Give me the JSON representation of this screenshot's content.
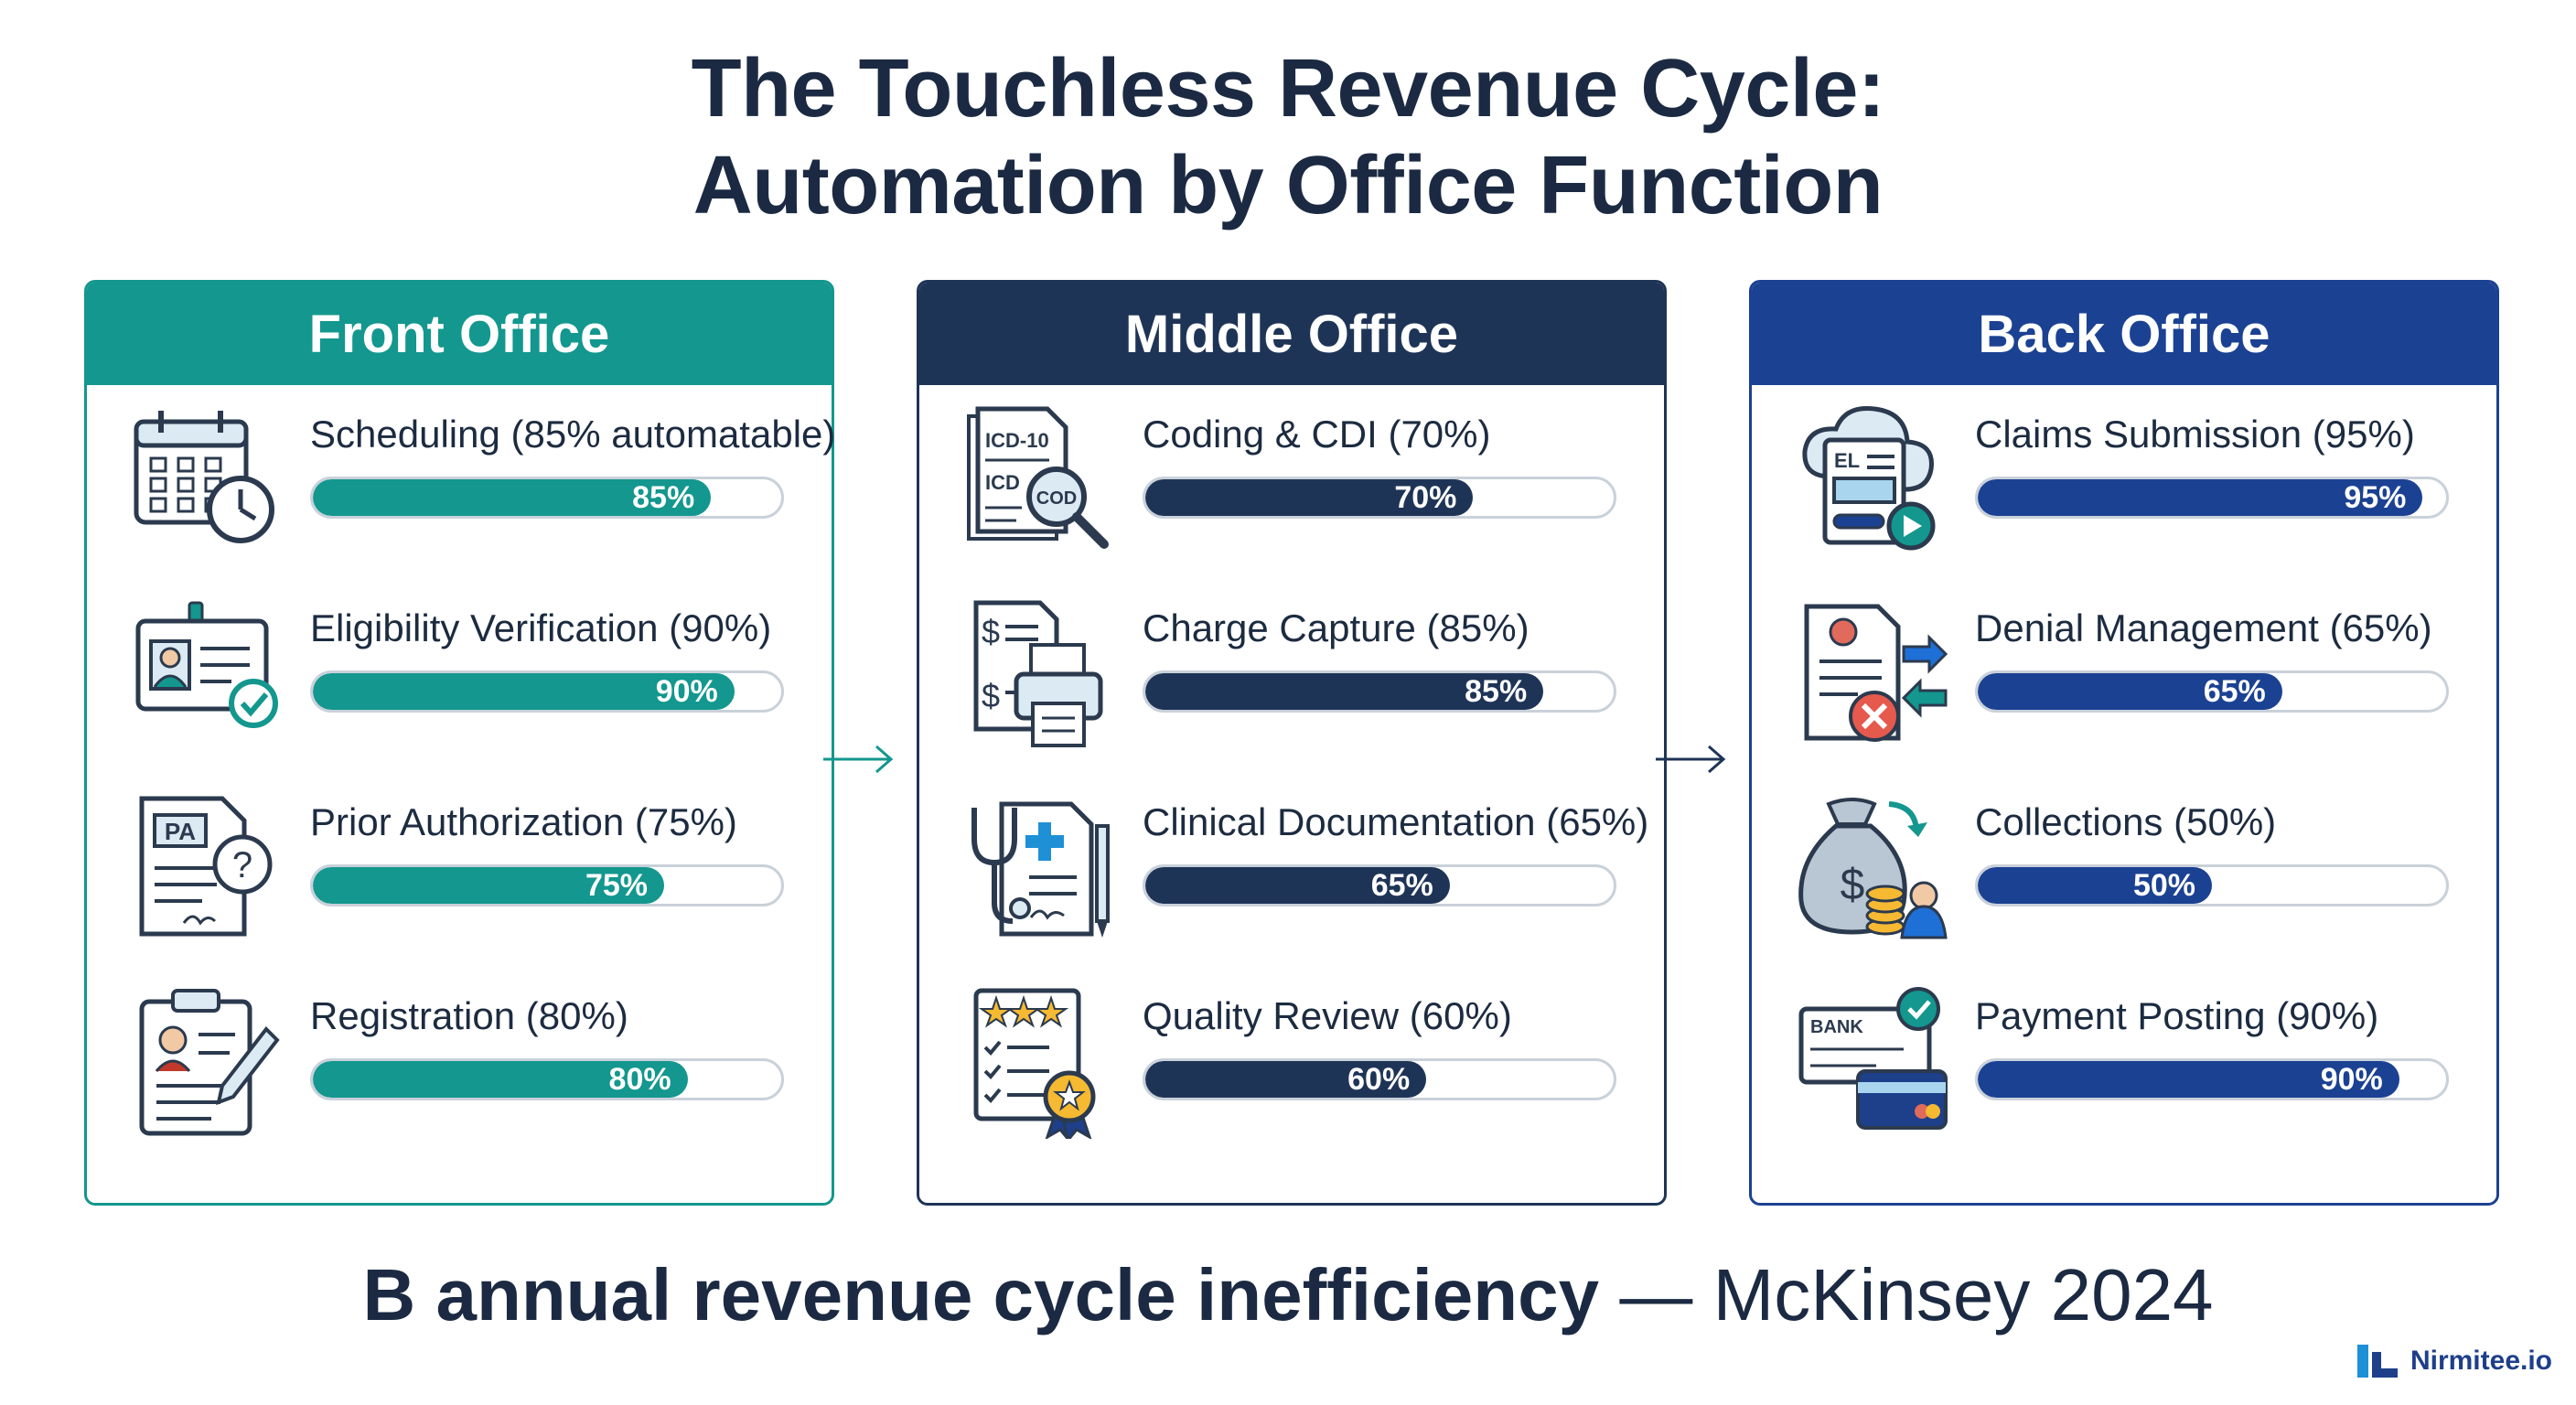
{
  "title": {
    "line1": "The Touchless Revenue Cycle:",
    "line2": "Automation by Office Function"
  },
  "colors": {
    "front": "#13978e",
    "middle": "#1e3457",
    "back": "#1b4192"
  },
  "chart_data": {
    "type": "bar",
    "title": "The Touchless Revenue Cycle: Automation by Office Function",
    "unit": "%",
    "xlim": [
      0,
      100
    ],
    "panels": [
      {
        "name": "Front Office",
        "color": "#13978e",
        "items": [
          {
            "label": "Scheduling",
            "suffix": "(85% automatable)",
            "value": 85,
            "value_label": "85%",
            "icon": "calendar-clock-icon"
          },
          {
            "label": "Eligibility Verification",
            "suffix": "(90%)",
            "value": 90,
            "value_label": "90%",
            "icon": "id-card-check-icon"
          },
          {
            "label": "Prior Authorization",
            "suffix": "(75%)",
            "value": 75,
            "value_label": "75%",
            "icon": "pa-document-question-icon"
          },
          {
            "label": "Registration",
            "suffix": "(80%)",
            "value": 80,
            "value_label": "80%",
            "icon": "clipboard-pen-icon"
          }
        ]
      },
      {
        "name": "Middle Office",
        "color": "#1e3457",
        "items": [
          {
            "label": "Coding & CDI",
            "suffix": "(70%)",
            "value": 70,
            "value_label": "70%",
            "icon": "icd-code-magnifier-icon"
          },
          {
            "label": "Charge Capture",
            "suffix": "(85%)",
            "value": 85,
            "value_label": "85%",
            "icon": "invoice-printer-icon"
          },
          {
            "label": "Clinical Documentation",
            "suffix": "(65%)",
            "value": 65,
            "value_label": "65%",
            "icon": "stethoscope-document-icon"
          },
          {
            "label": "Quality Review",
            "suffix": "(60%)",
            "value": 60,
            "value_label": "60%",
            "icon": "rating-checklist-badge-icon"
          }
        ]
      },
      {
        "name": "Back Office",
        "color": "#1b4192",
        "items": [
          {
            "label": "Claims Submission",
            "suffix": "(95%)",
            "value": 95,
            "value_label": "95%",
            "icon": "cloud-claim-send-icon"
          },
          {
            "label": "Denial Management",
            "suffix": "(65%)",
            "value": 65,
            "value_label": "65%",
            "icon": "denied-document-arrows-icon"
          },
          {
            "label": "Collections",
            "suffix": "(50%)",
            "value": 50,
            "value_label": "50%",
            "icon": "money-bag-coins-icon"
          },
          {
            "label": "Payment Posting",
            "suffix": "(90%)",
            "value": 90,
            "value_label": "90%",
            "icon": "bank-check-card-icon"
          }
        ]
      }
    ]
  },
  "footer": {
    "bold": "B annual revenue cycle inefficiency",
    "rest": " — McKinsey 2024"
  },
  "brand": {
    "name": "Nirmitee.io",
    "icon": "nirmitee-logo-icon"
  }
}
